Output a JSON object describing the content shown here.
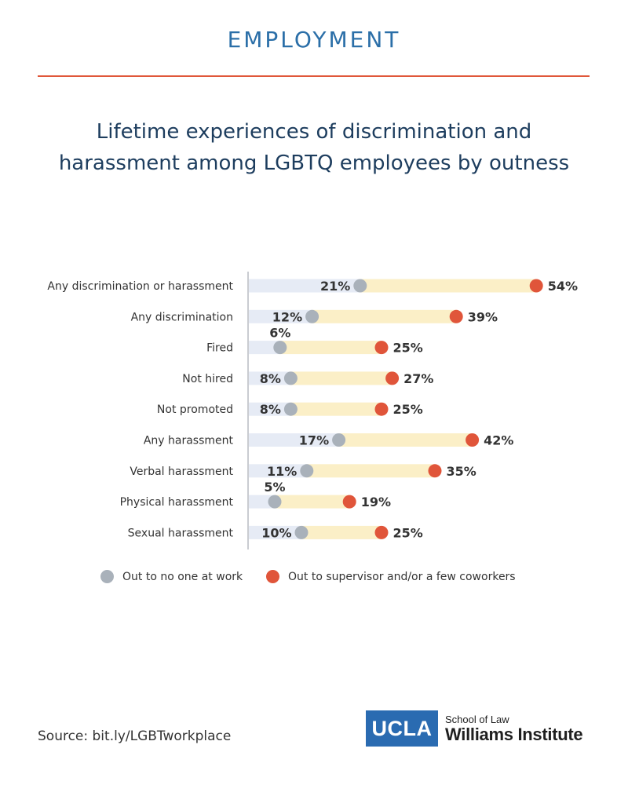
{
  "header": {
    "section": "EMPLOYMENT"
  },
  "title_lines": [
    "Lifetime experiences of discrimination and",
    "harassment among LGBTQ employees by outness"
  ],
  "colors": {
    "accent_rule": "#e0573a",
    "out_no_one": "#a9b1ba",
    "out_supervisor": "#e0553a",
    "track_left": "#e6ebf5",
    "track_right": "#fbefc7"
  },
  "chart_data": {
    "type": "dumbbell",
    "categories": [
      "Any discrimination or harassment",
      "Any discrimination",
      "Fired",
      "Not hired",
      "Not promoted",
      "Any harassment",
      "Verbal harassment",
      "Physical harassment",
      "Sexual harassment"
    ],
    "series": [
      {
        "name": "Out to no one at work",
        "values": [
          21,
          12,
          6,
          8,
          8,
          17,
          11,
          5,
          10
        ],
        "labels": [
          "21%",
          "12%",
          "6%",
          "8%",
          "8%",
          "17%",
          "11%",
          "5%",
          "10%"
        ]
      },
      {
        "name": "Out to supervisor and/or a few coworkers",
        "values": [
          54,
          39,
          25,
          27,
          25,
          42,
          35,
          19,
          25
        ],
        "labels": [
          "54%",
          "39%",
          "25%",
          "27%",
          "25%",
          "42%",
          "35%",
          "19%",
          "25%"
        ]
      }
    ],
    "xlim": [
      0,
      54
    ],
    "legend_position": "bottom"
  },
  "legend": [
    {
      "label": "Out to no one at work"
    },
    {
      "label": "Out to supervisor and/or a few coworkers"
    }
  ],
  "footer": {
    "source": "Source: bit.ly/LGBTworkplace",
    "logo_box": "UCLA",
    "logo_sub": "School of Law",
    "logo_main": "Williams Institute"
  }
}
